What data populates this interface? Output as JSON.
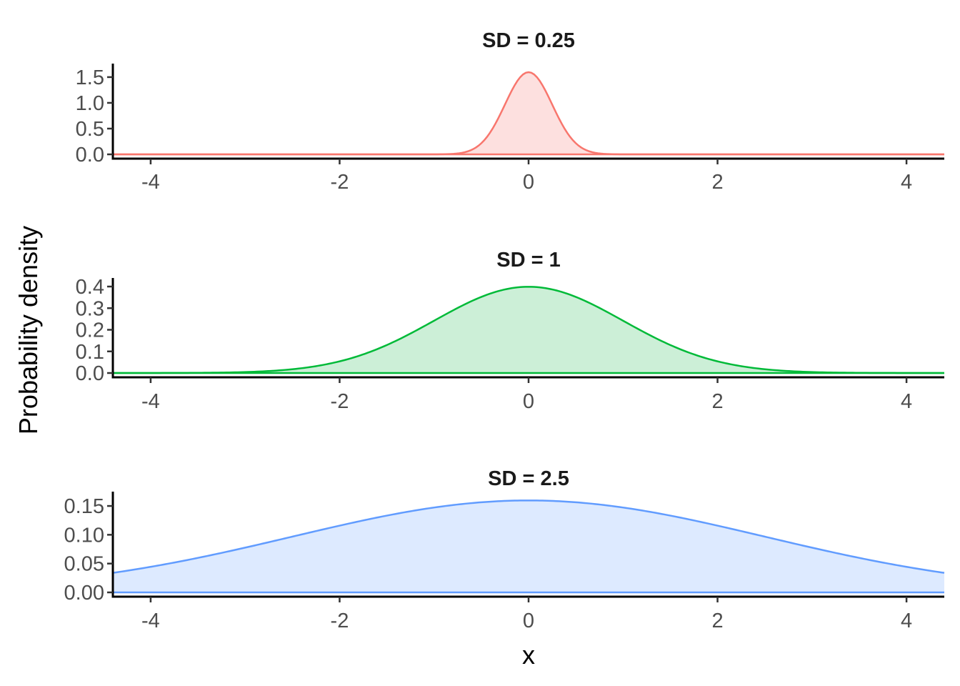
{
  "chart_data": {
    "type": "area",
    "xlabel": "x",
    "ylabel": "Probability density",
    "xlim": [
      -4.4,
      4.4
    ],
    "x_ticks": [
      -4,
      -2,
      0,
      2,
      4
    ],
    "x_tick_labels": [
      "-4",
      "-2",
      "0",
      "2",
      "4"
    ],
    "grid": false,
    "legend": "none",
    "panels": [
      {
        "title": "SD = 0.25",
        "sd": 0.25,
        "mean": 0,
        "color": "#F8766D",
        "fill": "#FDE0DF",
        "ylim": [
          0,
          1.6
        ],
        "y_ticks": [
          0,
          0.5,
          1.0,
          1.5
        ],
        "y_tick_labels": [
          "0.0",
          "0.5",
          "1.0",
          "1.5"
        ],
        "x": [
          -4.4,
          -1.0,
          -0.75,
          -0.5,
          -0.25,
          0,
          0.25,
          0.5,
          0.75,
          1.0,
          4.4
        ],
        "values": [
          0.0,
          0.0005,
          0.0177,
          0.216,
          0.968,
          1.596,
          0.968,
          0.216,
          0.0177,
          0.0005,
          0.0
        ]
      },
      {
        "title": "SD = 1",
        "sd": 1,
        "mean": 0,
        "color": "#00BA38",
        "fill": "#CCEFD7",
        "ylim": [
          0,
          0.4
        ],
        "y_ticks": [
          0,
          0.1,
          0.2,
          0.3,
          0.4
        ],
        "y_tick_labels": [
          "0.0",
          "0.1",
          "0.2",
          "0.3",
          "0.4"
        ],
        "x": [
          -4.4,
          -4,
          -3,
          -2,
          -1,
          0,
          1,
          2,
          3,
          4,
          4.4
        ],
        "values": [
          0.0,
          0.0001,
          0.0044,
          0.054,
          0.242,
          0.399,
          0.242,
          0.054,
          0.0044,
          0.0001,
          0.0
        ]
      },
      {
        "title": "SD = 2.5",
        "sd": 2.5,
        "mean": 0,
        "color": "#619CFF",
        "fill": "#DDEAFF",
        "ylim": [
          0,
          0.16
        ],
        "y_ticks": [
          0,
          0.05,
          0.1,
          0.15
        ],
        "y_tick_labels": [
          "0.00",
          "0.05",
          "0.10",
          "0.15"
        ],
        "x": [
          -4.4,
          -4,
          -2,
          0,
          2,
          4,
          4.4
        ],
        "values": [
          0.034,
          0.044,
          0.116,
          0.16,
          0.116,
          0.044,
          0.034
        ]
      }
    ]
  }
}
